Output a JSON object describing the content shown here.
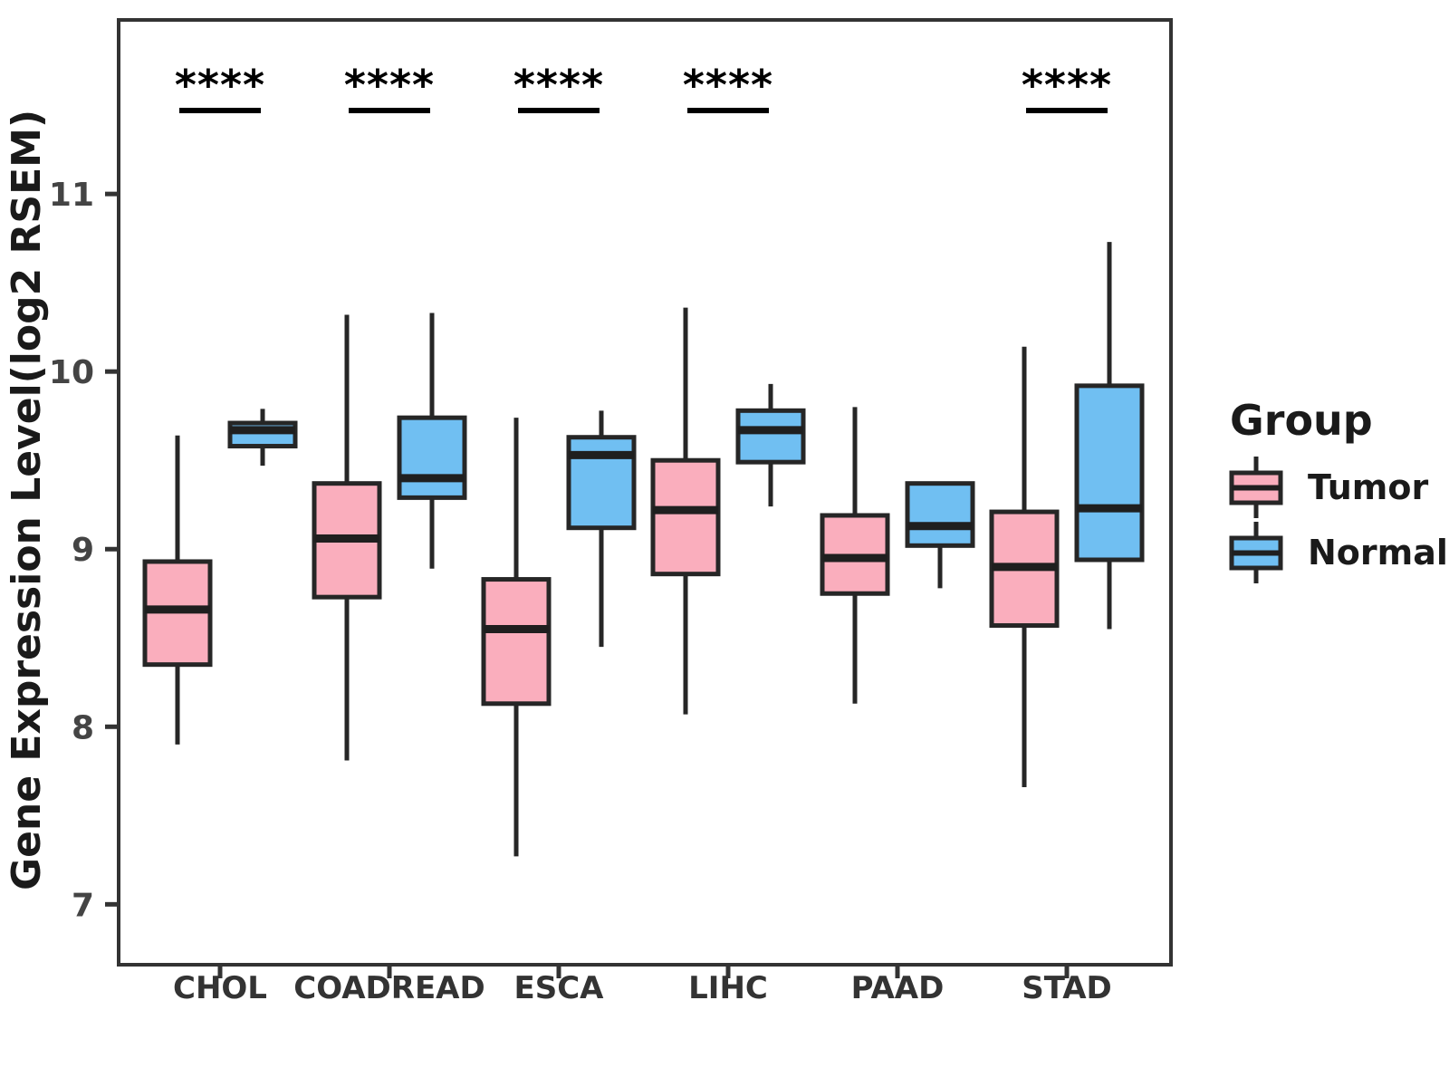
{
  "chart_data": {
    "type": "boxplot",
    "title": "",
    "xlabel": "",
    "ylabel": "Gene Expression Level(log2 RSEM)",
    "categories": [
      "CHOL",
      "COADREAD",
      "ESCA",
      "LIHC",
      "PAAD",
      "STAD"
    ],
    "series": [
      {
        "name": "Tumor",
        "color": "#FAAEBD",
        "boxes": [
          {
            "category": "CHOL",
            "min": 7.9,
            "q1": 8.35,
            "median": 8.66,
            "q3": 8.93,
            "max": 9.64
          },
          {
            "category": "COADREAD",
            "min": 7.81,
            "q1": 8.73,
            "median": 9.06,
            "q3": 9.37,
            "max": 10.32
          },
          {
            "category": "ESCA",
            "min": 7.27,
            "q1": 8.13,
            "median": 8.55,
            "q3": 8.83,
            "max": 9.74
          },
          {
            "category": "LIHC",
            "min": 8.07,
            "q1": 8.86,
            "median": 9.22,
            "q3": 9.5,
            "max": 10.36
          },
          {
            "category": "PAAD",
            "min": 8.13,
            "q1": 8.75,
            "median": 8.95,
            "q3": 9.19,
            "max": 9.8
          },
          {
            "category": "STAD",
            "min": 7.66,
            "q1": 8.57,
            "median": 8.9,
            "q3": 9.21,
            "max": 10.14
          }
        ]
      },
      {
        "name": "Normal",
        "color": "#70BFF2",
        "boxes": [
          {
            "category": "CHOL",
            "min": 9.47,
            "q1": 9.58,
            "median": 9.67,
            "q3": 9.71,
            "max": 9.79
          },
          {
            "category": "COADREAD",
            "min": 8.89,
            "q1": 9.29,
            "median": 9.4,
            "q3": 9.74,
            "max": 10.33
          },
          {
            "category": "ESCA",
            "min": 8.45,
            "q1": 9.12,
            "median": 9.53,
            "q3": 9.63,
            "max": 9.78
          },
          {
            "category": "LIHC",
            "min": 9.24,
            "q1": 9.49,
            "median": 9.67,
            "q3": 9.78,
            "max": 9.93
          },
          {
            "category": "PAAD",
            "min": 8.78,
            "q1": 9.02,
            "median": 9.13,
            "q3": 9.37,
            "max": 9.37
          },
          {
            "category": "STAD",
            "min": 8.55,
            "q1": 8.94,
            "median": 9.23,
            "q3": 9.92,
            "max": 10.73
          }
        ]
      }
    ],
    "significance_by_category": [
      "****",
      "****",
      "****",
      "****",
      null,
      "****"
    ],
    "ylim": [
      6.66,
      11.98
    ],
    "yticks": [
      7,
      8,
      9,
      10,
      11
    ],
    "grid": false,
    "legend": {
      "title": "Group",
      "position": "right"
    }
  },
  "theme": {
    "box_border_color": "#262626",
    "median_color": "#1f1f1f",
    "whisker_color": "#262626",
    "panel_border_color": "#333333",
    "axis_tick_color": "#333333",
    "y_tick_label_color": "#444444",
    "x_label_color": "#333333",
    "text_color": "#1a1a1a",
    "significance_color": "#000000",
    "background": "#ffffff"
  }
}
